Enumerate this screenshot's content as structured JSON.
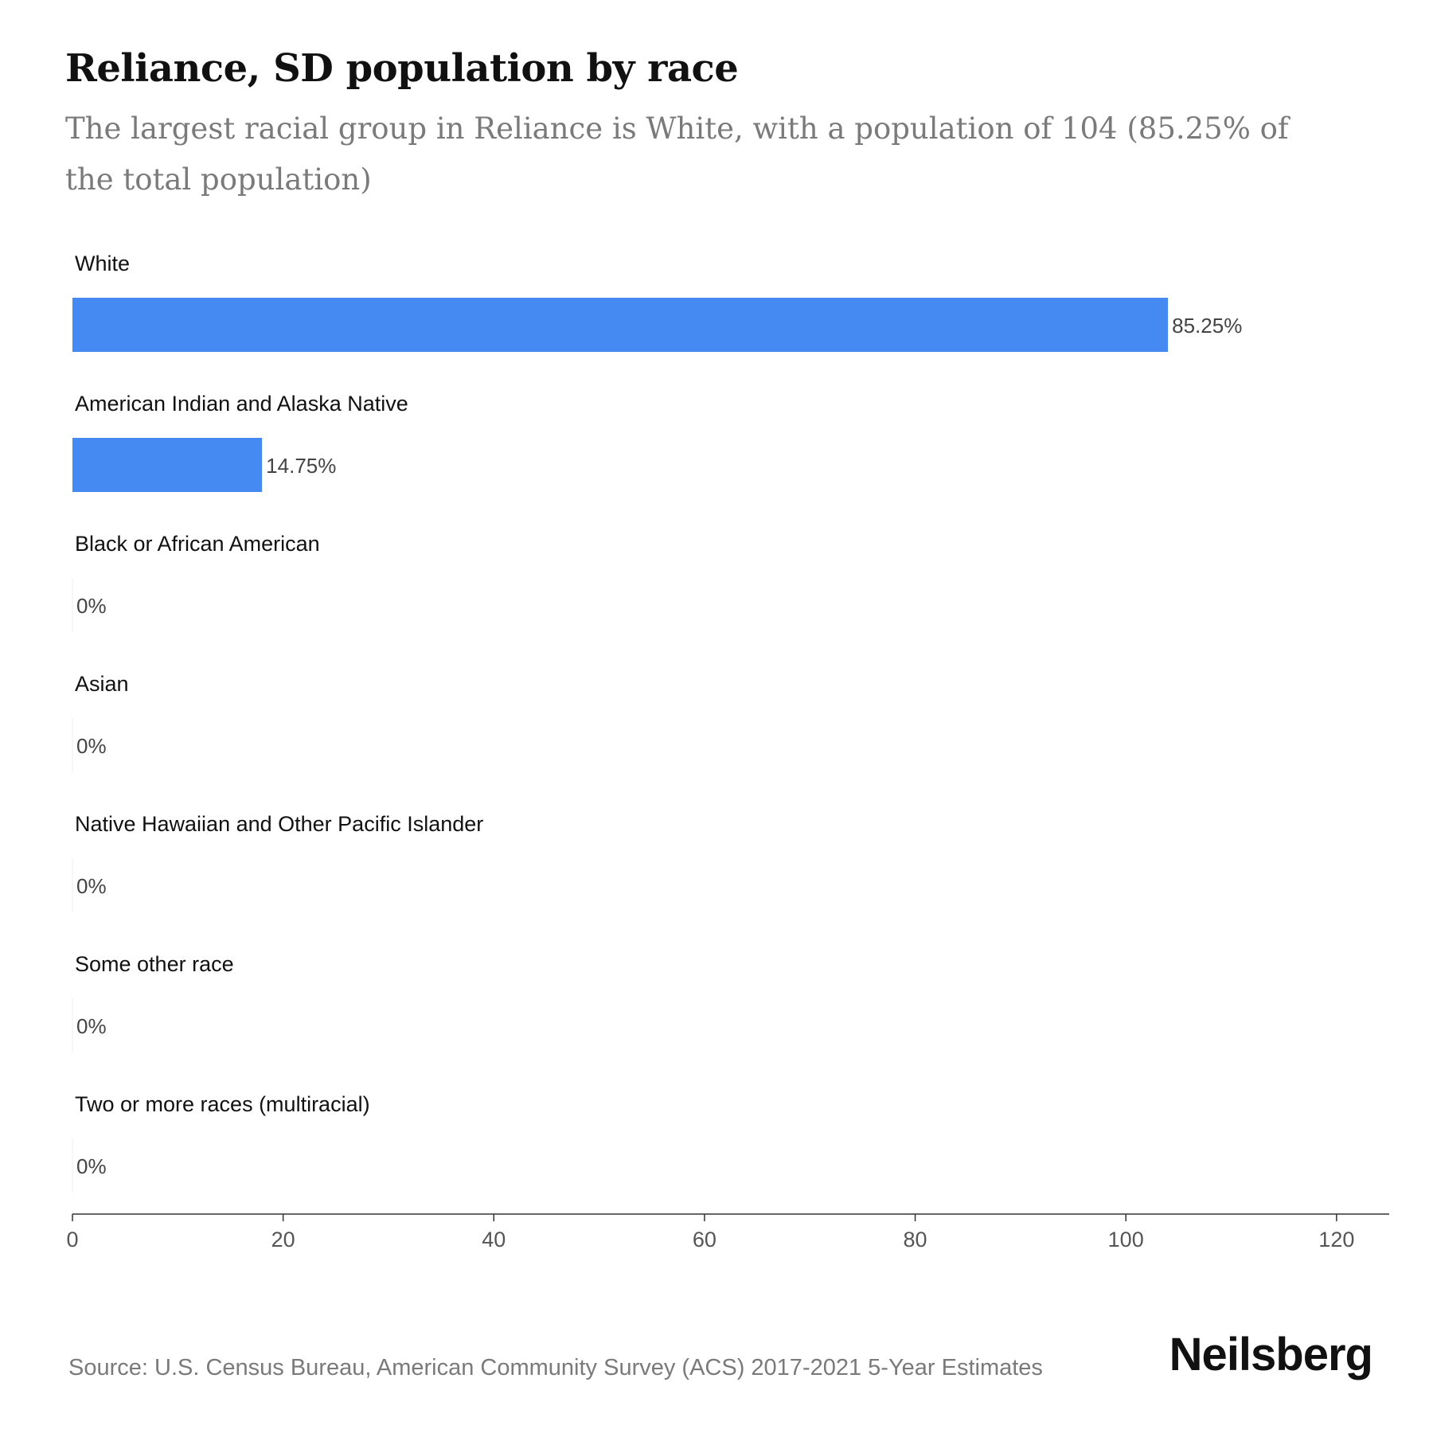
{
  "title": "Reliance, SD population by race",
  "subtitle": "The largest racial group in Reliance is White, with a population of 104 (85.25% of the total population)",
  "source": "Source: U.S. Census Bureau, American Community Survey (ACS) 2017-2021 5-Year Estimates",
  "brand": "Neilsberg",
  "colors": {
    "bar": "#4589f2",
    "axis": "#333333",
    "label": "#111111",
    "value_label": "#444444",
    "tick_label": "#555555"
  },
  "chart_data": {
    "type": "bar",
    "orientation": "horizontal",
    "categories": [
      "White",
      "American Indian and Alaska Native",
      "Black or African American",
      "Asian",
      "Native Hawaiian and Other Pacific Islander",
      "Some other race",
      "Two or more races (multiracial)"
    ],
    "values": [
      104,
      18,
      0,
      0,
      0,
      0,
      0
    ],
    "data_labels": [
      "85.25%",
      "14.75%",
      "0%",
      "0%",
      "0%",
      "0%",
      "0%"
    ],
    "xlim": [
      0,
      125
    ],
    "xticks": [
      0,
      20,
      40,
      60,
      80,
      100,
      120
    ],
    "xtick_labels": [
      "0",
      "20",
      "40",
      "60",
      "80",
      "100",
      "120"
    ],
    "xlabel": "",
    "ylabel": "",
    "grid": false,
    "legend": "none"
  }
}
